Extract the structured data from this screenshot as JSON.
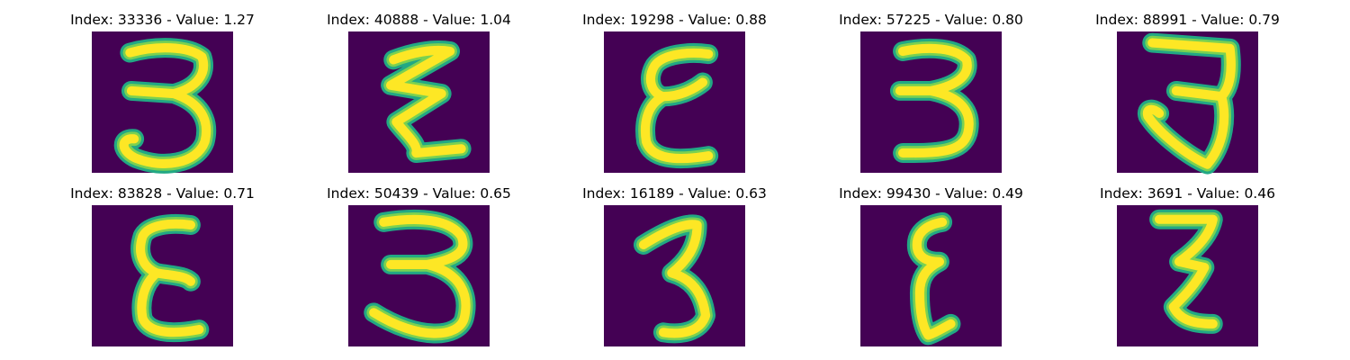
{
  "colors": {
    "background": "#440154",
    "stroke_outer": "#22a884",
    "stroke_mid": "#7ad151",
    "stroke_core": "#fde725"
  },
  "panels": [
    {
      "title": "Index: 33336 - Value: 1.27",
      "index": 33336,
      "value": 1.27,
      "glyph": "3"
    },
    {
      "title": "Index: 40888 - Value: 1.04",
      "index": 40888,
      "value": 1.04,
      "glyph": "zigzag-z"
    },
    {
      "title": "Index: 19298 - Value: 0.88",
      "index": 19298,
      "value": 0.88,
      "glyph": "epsilon"
    },
    {
      "title": "Index: 57225 - Value: 0.80",
      "index": 57225,
      "value": 0.8,
      "glyph": "3-flat"
    },
    {
      "title": "Index: 88991 - Value: 0.79",
      "index": 88991,
      "value": 0.79,
      "glyph": "3-hook"
    },
    {
      "title": "Index: 83828 - Value: 0.71",
      "index": 83828,
      "value": 0.71,
      "glyph": "epsilon-bold"
    },
    {
      "title": "Index: 50439 - Value: 0.65",
      "index": 50439,
      "value": 0.65,
      "glyph": "3-wide"
    },
    {
      "title": "Index: 16189 - Value: 0.63",
      "index": 16189,
      "value": 0.63,
      "glyph": "3-slant"
    },
    {
      "title": "Index: 99430 - Value: 0.49",
      "index": 99430,
      "value": 0.49,
      "glyph": "epsilon-thin"
    },
    {
      "title": "Index: 3691 - Value: 0.46",
      "index": 3691,
      "value": 0.46,
      "glyph": "z-narrow"
    }
  ]
}
